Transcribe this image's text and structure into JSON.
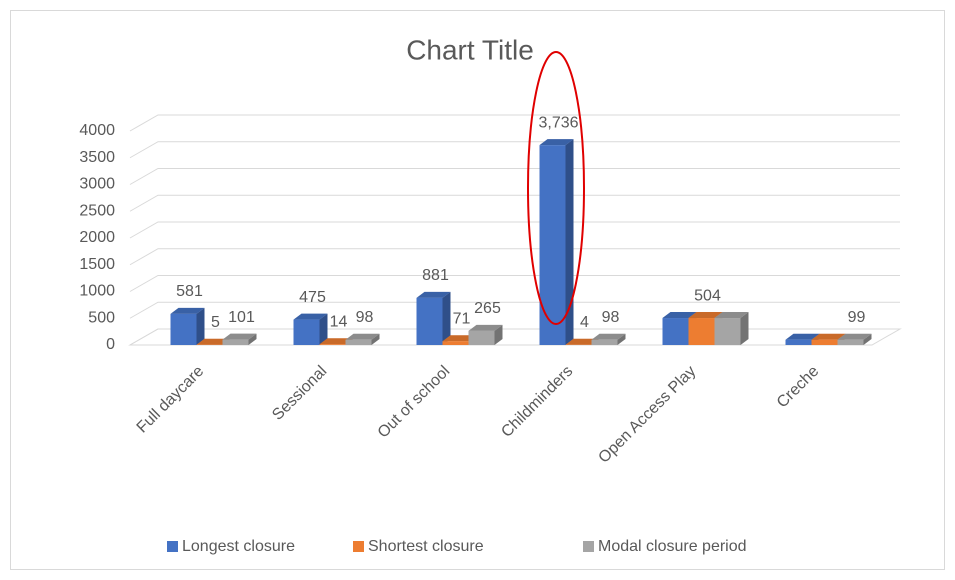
{
  "chart_data": {
    "type": "bar3d",
    "title": "Chart Title",
    "categories": [
      "Full daycare",
      "Sessional",
      "Out of school",
      "Childminders",
      "Open Access Play",
      "Creche"
    ],
    "series": [
      {
        "name": "Longest closure",
        "color": "#4472c4",
        "values": [
          581,
          475,
          881,
          3736,
          504,
          99
        ],
        "value_labels": [
          "581",
          "475",
          "881",
          "3,736",
          null,
          null
        ]
      },
      {
        "name": "Shortest closure",
        "color": "#ed7d31",
        "values": [
          5,
          14,
          71,
          4,
          504,
          99
        ],
        "value_labels": [
          "5",
          "14",
          "71",
          "4",
          "504",
          null
        ]
      },
      {
        "name": "Modal closure period",
        "color": "#a5a5a5",
        "values": [
          101,
          98,
          265,
          98,
          504,
          99
        ],
        "value_labels": [
          "101",
          "98",
          "265",
          "98",
          null,
          "99"
        ]
      }
    ],
    "ylim": [
      0,
      4000
    ],
    "yticks": [
      0,
      500,
      1000,
      1500,
      2000,
      2500,
      3000,
      3500,
      4000
    ],
    "grid": true,
    "legend": "bottom"
  }
}
